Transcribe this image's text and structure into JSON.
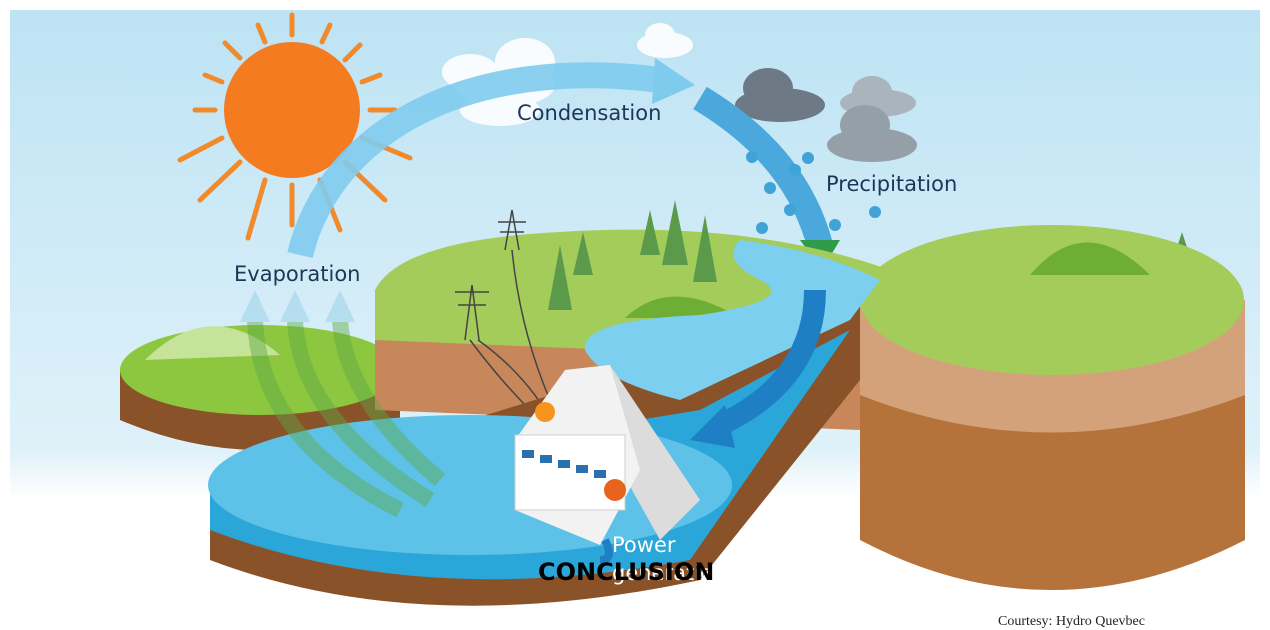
{
  "labels": {
    "condensation": "Condensation",
    "precipitation": "Precipitation",
    "evaporation": "Evaporation",
    "power_generation": [
      "Power",
      "generation"
    ]
  },
  "overlay": "CONCLUSION",
  "credit": "Courtesy:  Hydro Quevbec"
}
